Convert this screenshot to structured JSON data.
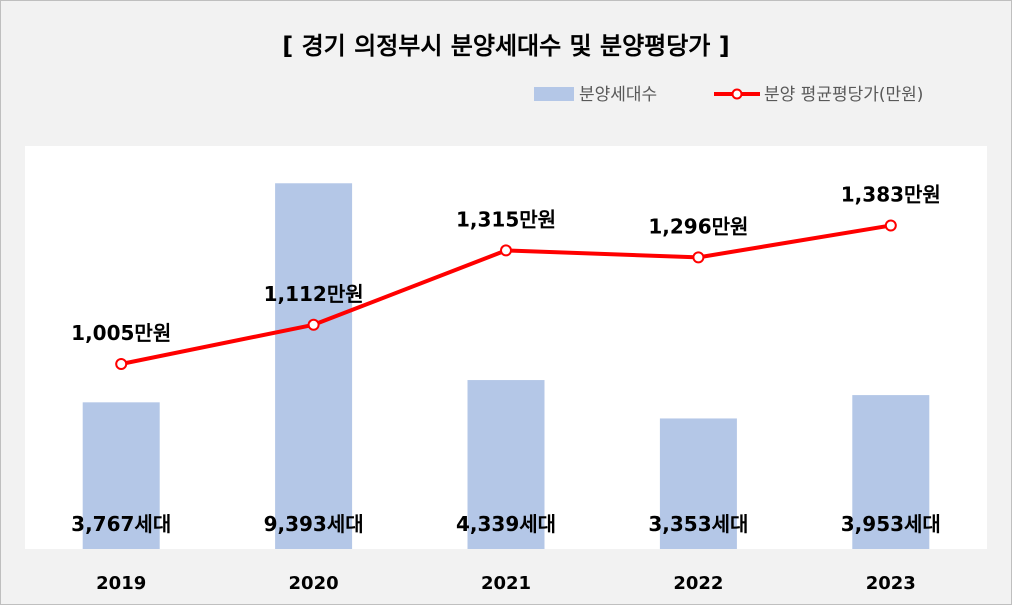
{
  "chart_data": {
    "type": "bar",
    "title": "[ 경기 의정부시 분양세대수 및 분양평당가 ]",
    "categories": [
      "2019",
      "2020",
      "2021",
      "2022",
      "2023"
    ],
    "series": [
      {
        "name": "분양세대수",
        "type": "bar",
        "values": [
          3767,
          9393,
          4339,
          3353,
          3953
        ],
        "labels": [
          "3,767세대",
          "9,393세대",
          "4,339세대",
          "3,353세대",
          "3,953세대"
        ],
        "color": "#b4c7e7"
      },
      {
        "name": "분양 평균평당가(만원)",
        "type": "line",
        "values": [
          1005,
          1112,
          1315,
          1296,
          1383
        ],
        "labels": [
          "1,005만원",
          "1,112만원",
          "1,315만원",
          "1,296만원",
          "1,383만원"
        ],
        "color": "#ff0000"
      }
    ],
    "legend_position": "top-right",
    "grid": false
  }
}
